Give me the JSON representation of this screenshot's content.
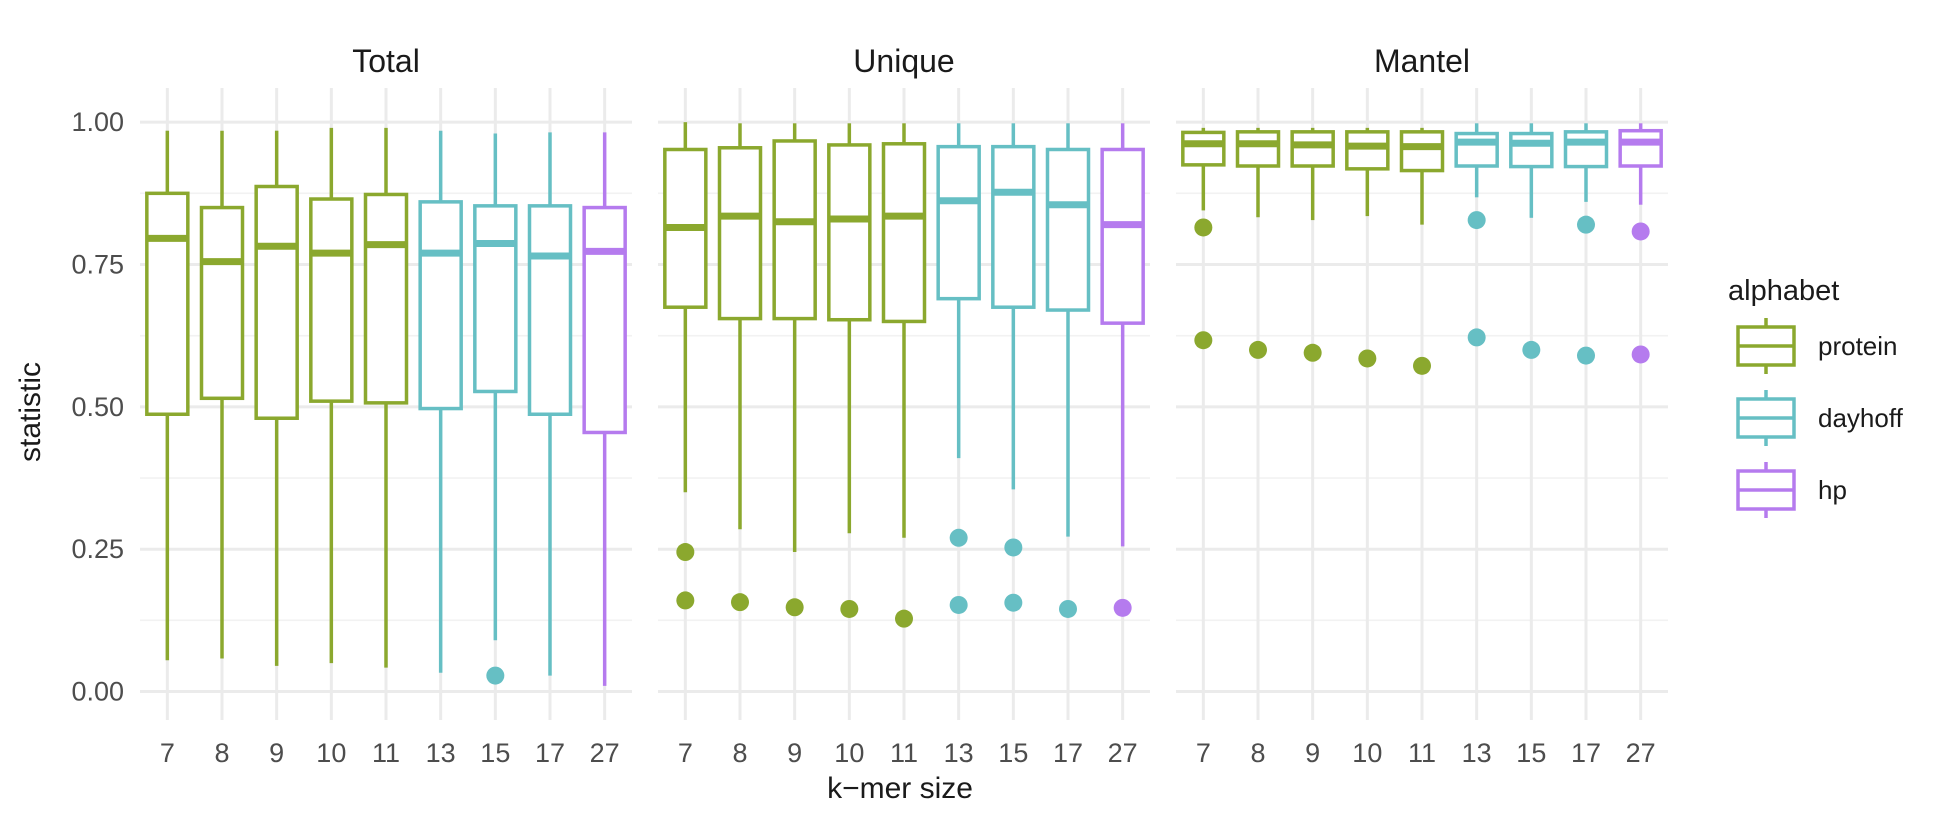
{
  "chart_data": {
    "type": "box",
    "xlabel": "k−mer size",
    "ylabel": "statistic",
    "ylim": [
      -0.05,
      1.06
    ],
    "yticks": [
      "0.00",
      "0.25",
      "0.50",
      "0.75",
      "1.00"
    ],
    "ytick_values": [
      0,
      0.25,
      0.5,
      0.75,
      1.0
    ],
    "categories": [
      "7",
      "8",
      "9",
      "10",
      "11",
      "13",
      "15",
      "17",
      "27"
    ],
    "grid": true,
    "legend": {
      "title": "alphabet",
      "position": "right",
      "entries": [
        {
          "label": "protein",
          "color": "#8BA82E"
        },
        {
          "label": "dayhoff",
          "color": "#66BFC4"
        },
        {
          "label": "hp",
          "color": "#B57BEE"
        }
      ]
    },
    "facets": [
      {
        "title": "Total",
        "boxes": [
          {
            "k": "7",
            "alphabet": "protein",
            "lower": 0.055,
            "q1": 0.487,
            "median": 0.796,
            "q3": 0.875,
            "upper": 0.985,
            "outliers": []
          },
          {
            "k": "8",
            "alphabet": "protein",
            "lower": 0.058,
            "q1": 0.515,
            "median": 0.755,
            "q3": 0.85,
            "upper": 0.985,
            "outliers": []
          },
          {
            "k": "9",
            "alphabet": "protein",
            "lower": 0.045,
            "q1": 0.48,
            "median": 0.782,
            "q3": 0.887,
            "upper": 0.985,
            "outliers": []
          },
          {
            "k": "10",
            "alphabet": "protein",
            "lower": 0.05,
            "q1": 0.51,
            "median": 0.77,
            "q3": 0.865,
            "upper": 0.99,
            "outliers": []
          },
          {
            "k": "11",
            "alphabet": "protein",
            "lower": 0.042,
            "q1": 0.507,
            "median": 0.785,
            "q3": 0.873,
            "upper": 0.99,
            "outliers": []
          },
          {
            "k": "13",
            "alphabet": "dayhoff",
            "lower": 0.033,
            "q1": 0.497,
            "median": 0.77,
            "q3": 0.86,
            "upper": 0.985,
            "outliers": []
          },
          {
            "k": "15",
            "alphabet": "dayhoff",
            "lower": 0.09,
            "q1": 0.527,
            "median": 0.787,
            "q3": 0.853,
            "upper": 0.98,
            "outliers": [
              0.028
            ]
          },
          {
            "k": "17",
            "alphabet": "dayhoff",
            "lower": 0.028,
            "q1": 0.487,
            "median": 0.765,
            "q3": 0.853,
            "upper": 0.982,
            "outliers": []
          },
          {
            "k": "27",
            "alphabet": "hp",
            "lower": 0.01,
            "q1": 0.455,
            "median": 0.773,
            "q3": 0.85,
            "upper": 0.982,
            "outliers": []
          }
        ]
      },
      {
        "title": "Unique",
        "boxes": [
          {
            "k": "7",
            "alphabet": "protein",
            "lower": 0.35,
            "q1": 0.675,
            "median": 0.815,
            "q3": 0.952,
            "upper": 1.0,
            "outliers": [
              0.245,
              0.16
            ]
          },
          {
            "k": "8",
            "alphabet": "protein",
            "lower": 0.285,
            "q1": 0.655,
            "median": 0.835,
            "q3": 0.955,
            "upper": 0.998,
            "outliers": [
              0.157
            ]
          },
          {
            "k": "9",
            "alphabet": "protein",
            "lower": 0.245,
            "q1": 0.655,
            "median": 0.825,
            "q3": 0.967,
            "upper": 0.998,
            "outliers": [
              0.148
            ]
          },
          {
            "k": "10",
            "alphabet": "protein",
            "lower": 0.278,
            "q1": 0.653,
            "median": 0.83,
            "q3": 0.96,
            "upper": 0.998,
            "outliers": [
              0.145
            ]
          },
          {
            "k": "11",
            "alphabet": "protein",
            "lower": 0.27,
            "q1": 0.65,
            "median": 0.835,
            "q3": 0.962,
            "upper": 0.998,
            "outliers": [
              0.128
            ]
          },
          {
            "k": "13",
            "alphabet": "dayhoff",
            "lower": 0.41,
            "q1": 0.69,
            "median": 0.862,
            "q3": 0.957,
            "upper": 0.998,
            "outliers": [
              0.27,
              0.152
            ]
          },
          {
            "k": "15",
            "alphabet": "dayhoff",
            "lower": 0.355,
            "q1": 0.675,
            "median": 0.877,
            "q3": 0.957,
            "upper": 0.998,
            "outliers": [
              0.253,
              0.156
            ]
          },
          {
            "k": "17",
            "alphabet": "dayhoff",
            "lower": 0.272,
            "q1": 0.67,
            "median": 0.855,
            "q3": 0.952,
            "upper": 0.998,
            "outliers": [
              0.145
            ]
          },
          {
            "k": "27",
            "alphabet": "hp",
            "lower": 0.255,
            "q1": 0.647,
            "median": 0.82,
            "q3": 0.952,
            "upper": 0.998,
            "outliers": [
              0.147
            ]
          }
        ]
      },
      {
        "title": "Mantel",
        "boxes": [
          {
            "k": "7",
            "alphabet": "protein",
            "lower": 0.845,
            "q1": 0.925,
            "median": 0.962,
            "q3": 0.982,
            "upper": 0.99,
            "outliers": [
              0.815,
              0.617
            ]
          },
          {
            "k": "8",
            "alphabet": "protein",
            "lower": 0.833,
            "q1": 0.923,
            "median": 0.962,
            "q3": 0.983,
            "upper": 0.99,
            "outliers": [
              0.6
            ]
          },
          {
            "k": "9",
            "alphabet": "protein",
            "lower": 0.828,
            "q1": 0.923,
            "median": 0.96,
            "q3": 0.983,
            "upper": 0.99,
            "outliers": [
              0.595
            ]
          },
          {
            "k": "10",
            "alphabet": "protein",
            "lower": 0.835,
            "q1": 0.918,
            "median": 0.958,
            "q3": 0.983,
            "upper": 0.99,
            "outliers": [
              0.585
            ]
          },
          {
            "k": "11",
            "alphabet": "protein",
            "lower": 0.82,
            "q1": 0.915,
            "median": 0.957,
            "q3": 0.983,
            "upper": 0.99,
            "outliers": [
              0.572
            ]
          },
          {
            "k": "13",
            "alphabet": "dayhoff",
            "lower": 0.868,
            "q1": 0.923,
            "median": 0.965,
            "q3": 0.98,
            "upper": 0.998,
            "outliers": [
              0.828,
              0.622
            ]
          },
          {
            "k": "15",
            "alphabet": "dayhoff",
            "lower": 0.832,
            "q1": 0.922,
            "median": 0.963,
            "q3": 0.98,
            "upper": 0.998,
            "outliers": [
              0.6
            ]
          },
          {
            "k": "17",
            "alphabet": "dayhoff",
            "lower": 0.86,
            "q1": 0.922,
            "median": 0.965,
            "q3": 0.983,
            "upper": 0.998,
            "outliers": [
              0.82,
              0.59
            ]
          },
          {
            "k": "27",
            "alphabet": "hp",
            "lower": 0.855,
            "q1": 0.923,
            "median": 0.965,
            "q3": 0.985,
            "upper": 0.998,
            "outliers": [
              0.808,
              0.592
            ]
          }
        ]
      }
    ]
  }
}
